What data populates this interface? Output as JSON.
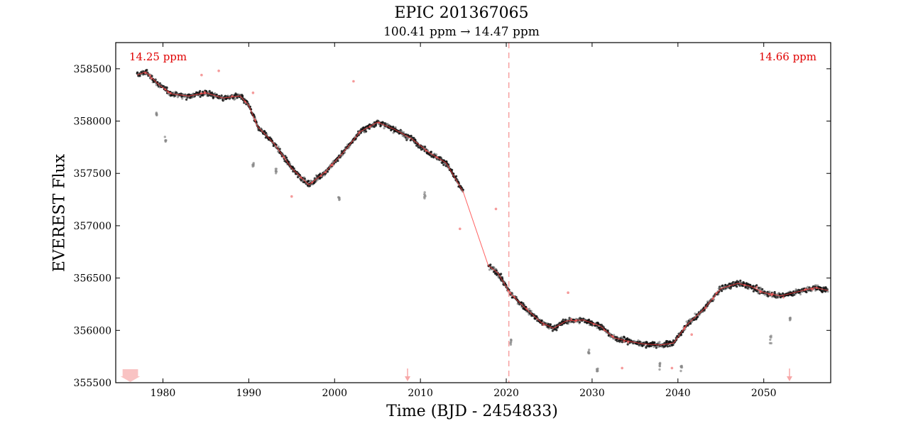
{
  "chart_data": {
    "type": "scatter",
    "title": "EPIC 201367065",
    "subtitle": "100.41 ppm → 14.47 ppm",
    "xlabel": "Time (BJD - 2454833)",
    "ylabel": "EVEREST Flux",
    "xlim": [
      1974.5,
      2057.8
    ],
    "ylim": [
      355500,
      358750
    ],
    "x_ticks": [
      1980,
      1990,
      2000,
      2010,
      2020,
      2030,
      2040,
      2050
    ],
    "y_ticks": [
      355500,
      356000,
      356500,
      357000,
      357500,
      358000,
      358500
    ],
    "annotations": [
      {
        "text": "14.25 ppm",
        "position": "top-left",
        "color": "#e00000"
      },
      {
        "text": "14.66 ppm",
        "position": "top-right",
        "color": "#e00000"
      }
    ],
    "breakpoint_x": 2020.3,
    "gap": [
      2015.0,
      2017.9
    ],
    "trend_knots": [
      [
        1977.0,
        358440
      ],
      [
        1978.0,
        358470
      ],
      [
        1979.5,
        358350
      ],
      [
        1981.0,
        358260
      ],
      [
        1983.0,
        358240
      ],
      [
        1985.0,
        358270
      ],
      [
        1987.0,
        358220
      ],
      [
        1989.0,
        358240
      ],
      [
        1990.0,
        358150
      ],
      [
        1991.0,
        357950
      ],
      [
        1993.0,
        357780
      ],
      [
        1995.0,
        357550
      ],
      [
        1997.0,
        357390
      ],
      [
        1999.0,
        357520
      ],
      [
        2001.0,
        357700
      ],
      [
        2003.0,
        357900
      ],
      [
        2005.0,
        357990
      ],
      [
        2007.0,
        357920
      ],
      [
        2009.0,
        357830
      ],
      [
        2011.0,
        357700
      ],
      [
        2013.0,
        357600
      ],
      [
        2015.0,
        357320
      ],
      [
        2017.9,
        356620
      ],
      [
        2019.0,
        356550
      ],
      [
        2020.5,
        356350
      ],
      [
        2022.0,
        356230
      ],
      [
        2024.0,
        356080
      ],
      [
        2025.5,
        356020
      ],
      [
        2027.0,
        356090
      ],
      [
        2029.0,
        356100
      ],
      [
        2031.0,
        356040
      ],
      [
        2032.5,
        355930
      ],
      [
        2034.0,
        355900
      ],
      [
        2036.0,
        355870
      ],
      [
        2038.0,
        355860
      ],
      [
        2039.5,
        355880
      ],
      [
        2041.0,
        356050
      ],
      [
        2043.0,
        356200
      ],
      [
        2045.0,
        356400
      ],
      [
        2047.0,
        356450
      ],
      [
        2048.5,
        356420
      ],
      [
        2050.0,
        356360
      ],
      [
        2052.0,
        356330
      ],
      [
        2054.0,
        356370
      ],
      [
        2056.0,
        356410
      ],
      [
        2057.5,
        356380
      ]
    ],
    "outlier_groups": [
      {
        "x": 1979.3,
        "y": [
          358080,
          358050
        ]
      },
      {
        "x": 1980.3,
        "y": [
          357850,
          357800
        ]
      },
      {
        "x": 1990.5,
        "y": [
          357600,
          357560
        ]
      },
      {
        "x": 1993.2,
        "y": [
          357550,
          357500
        ]
      },
      {
        "x": 2000.5,
        "y": [
          357280,
          357240
        ]
      },
      {
        "x": 2010.5,
        "y": [
          357320,
          357260
        ]
      },
      {
        "x": 2020.5,
        "y": [
          355920,
          355850
        ]
      },
      {
        "x": 2029.6,
        "y": [
          355820,
          355780
        ]
      },
      {
        "x": 2030.6,
        "y": [
          355650,
          355600
        ]
      },
      {
        "x": 2037.9,
        "y": [
          355700,
          355620
        ]
      },
      {
        "x": 2040.4,
        "y": [
          355660,
          355610
        ]
      },
      {
        "x": 2050.8,
        "y": [
          355960,
          355830
        ]
      },
      {
        "x": 2053.1,
        "y": [
          356120,
          356080
        ]
      }
    ],
    "masked_points": [
      [
        1984.5,
        358440
      ],
      [
        1986.5,
        358480
      ],
      [
        1990.5,
        358270
      ],
      [
        1995.0,
        357280
      ],
      [
        2002.2,
        358380
      ],
      [
        2014.6,
        356970
      ],
      [
        2018.8,
        357160
      ],
      [
        2027.2,
        356360
      ],
      [
        2033.5,
        355640
      ],
      [
        2039.3,
        355640
      ],
      [
        2041.6,
        355960
      ]
    ],
    "arrows_x": [
      2008.5,
      2053.0
    ],
    "left_marker_x": [
      1975.3,
      1977.1
    ]
  }
}
